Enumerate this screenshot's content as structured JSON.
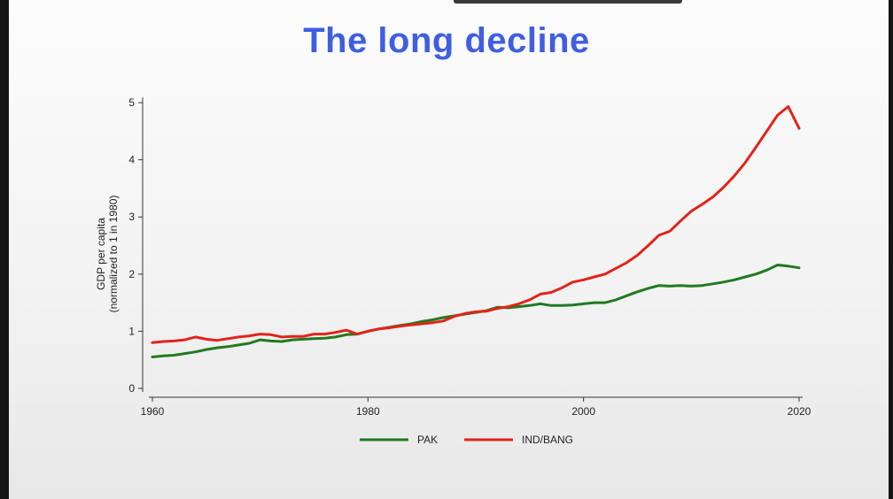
{
  "slide": {
    "title": "The long decline"
  },
  "chart_data": {
    "type": "line",
    "title": "The long decline",
    "xlabel": "",
    "ylabel_lines": [
      "GDP per capita",
      "(normalized to 1 in 1980)"
    ],
    "xlim": [
      1960,
      2020
    ],
    "ylim": [
      0,
      5
    ],
    "x_ticks": [
      1960,
      1980,
      2000,
      2020
    ],
    "y_ticks": [
      0,
      1,
      2,
      3,
      4,
      5
    ],
    "grid": false,
    "legend_position": "bottom",
    "x": [
      1960,
      1961,
      1962,
      1963,
      1964,
      1965,
      1966,
      1967,
      1968,
      1969,
      1970,
      1971,
      1972,
      1973,
      1974,
      1975,
      1976,
      1977,
      1978,
      1979,
      1980,
      1981,
      1982,
      1983,
      1984,
      1985,
      1986,
      1987,
      1988,
      1989,
      1990,
      1991,
      1992,
      1993,
      1994,
      1995,
      1996,
      1997,
      1998,
      1999,
      2000,
      2001,
      2002,
      2003,
      2004,
      2005,
      2006,
      2007,
      2008,
      2009,
      2010,
      2011,
      2012,
      2013,
      2014,
      2015,
      2016,
      2017,
      2018,
      2019,
      2020
    ],
    "series": [
      {
        "name": "PAK",
        "color": "#1f7a1f",
        "values": [
          0.55,
          0.57,
          0.58,
          0.61,
          0.64,
          0.68,
          0.71,
          0.73,
          0.76,
          0.79,
          0.85,
          0.83,
          0.82,
          0.85,
          0.86,
          0.87,
          0.88,
          0.9,
          0.94,
          0.95,
          1.0,
          1.04,
          1.07,
          1.1,
          1.13,
          1.17,
          1.2,
          1.24,
          1.27,
          1.3,
          1.33,
          1.36,
          1.42,
          1.41,
          1.43,
          1.45,
          1.48,
          1.45,
          1.45,
          1.46,
          1.48,
          1.5,
          1.5,
          1.55,
          1.62,
          1.69,
          1.75,
          1.8,
          1.79,
          1.8,
          1.79,
          1.8,
          1.83,
          1.86,
          1.9,
          1.95,
          2.0,
          2.07,
          2.16,
          2.14,
          2.11
        ]
      },
      {
        "name": "IND/BANG",
        "color": "#e2231a",
        "values": [
          0.8,
          0.82,
          0.83,
          0.85,
          0.9,
          0.86,
          0.84,
          0.87,
          0.9,
          0.92,
          0.95,
          0.94,
          0.9,
          0.91,
          0.91,
          0.95,
          0.95,
          0.98,
          1.02,
          0.95,
          1.0,
          1.04,
          1.06,
          1.09,
          1.11,
          1.13,
          1.15,
          1.18,
          1.26,
          1.31,
          1.34,
          1.35,
          1.4,
          1.43,
          1.48,
          1.55,
          1.65,
          1.68,
          1.76,
          1.86,
          1.9,
          1.95,
          2.0,
          2.1,
          2.2,
          2.33,
          2.5,
          2.68,
          2.75,
          2.93,
          3.1,
          3.22,
          3.35,
          3.52,
          3.72,
          3.95,
          4.22,
          4.5,
          4.78,
          4.93,
          4.55
        ]
      }
    ]
  }
}
